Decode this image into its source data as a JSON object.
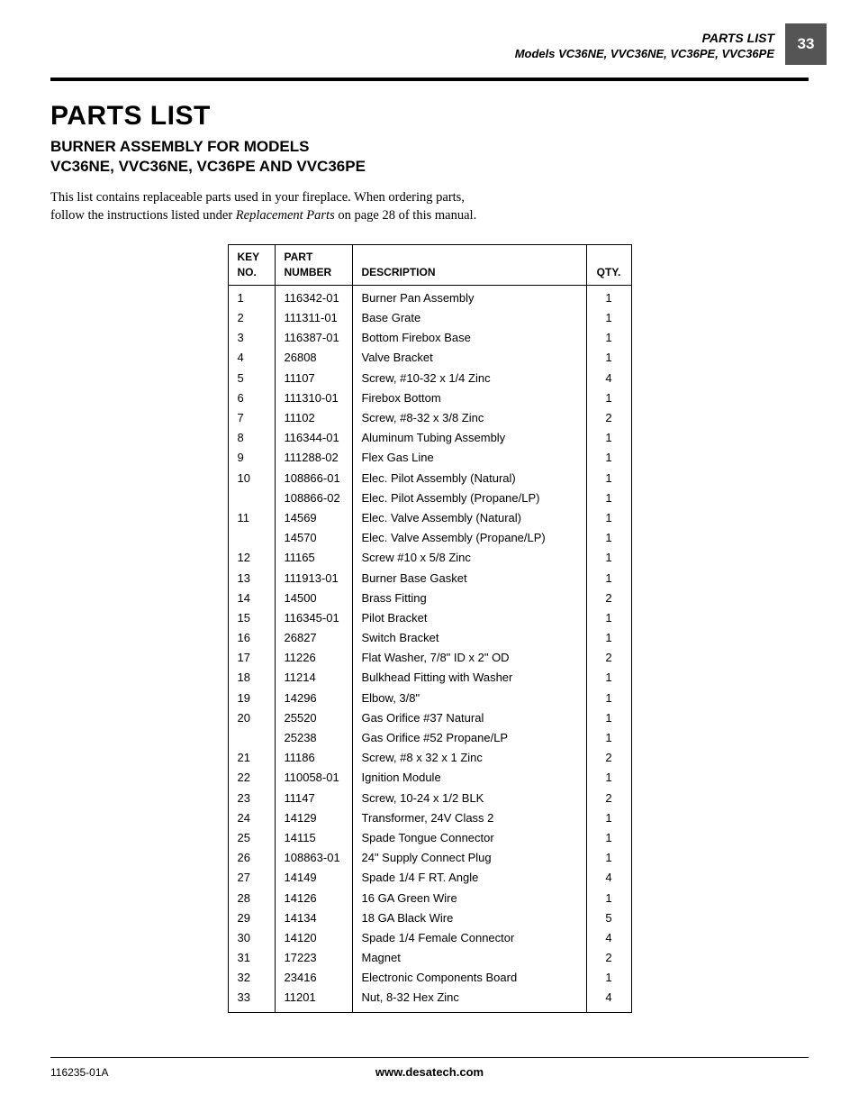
{
  "header": {
    "title": "PARTS LIST",
    "models_line": "Models VC36NE, VVC36NE, VC36PE, VVC36PE",
    "page_number": "33"
  },
  "heading": {
    "main": "PARTS LIST",
    "sub_line1": "BURNER ASSEMBLY FOR MODELS",
    "sub_line2": "VC36NE, VVC36NE, VC36PE AND VVC36PE"
  },
  "intro": {
    "before_ital": "This list contains replaceable parts used in your fireplace. When ordering parts, follow the instructions listed under ",
    "ital": "Replacement Parts",
    "after_ital": " on page 28 of this manual."
  },
  "table": {
    "columns": {
      "key_l1": "KEY",
      "key_l2": "NO.",
      "part_l1": "PART",
      "part_l2": "NUMBER",
      "desc": "DESCRIPTION",
      "qty": "QTY."
    },
    "rows": [
      {
        "key": "1",
        "part": "116342-01",
        "desc": "Burner Pan Assembly",
        "qty": "1"
      },
      {
        "key": "2",
        "part": "111311-01",
        "desc": "Base Grate",
        "qty": "1"
      },
      {
        "key": "3",
        "part": "116387-01",
        "desc": "Bottom Firebox Base",
        "qty": "1"
      },
      {
        "key": "4",
        "part": "26808",
        "desc": "Valve Bracket",
        "qty": "1"
      },
      {
        "key": "5",
        "part": "11107",
        "desc": "Screw, #10-32 x 1/4 Zinc",
        "qty": "4"
      },
      {
        "key": "6",
        "part": "111310-01",
        "desc": "Firebox Bottom",
        "qty": "1"
      },
      {
        "key": "7",
        "part": "11102",
        "desc": "Screw, #8-32 x 3/8 Zinc",
        "qty": "2"
      },
      {
        "key": "8",
        "part": "116344-01",
        "desc": "Aluminum Tubing Assembly",
        "qty": "1"
      },
      {
        "key": "9",
        "part": "111288-02",
        "desc": "Flex Gas Line",
        "qty": "1"
      },
      {
        "key": "10",
        "part": "108866-01",
        "desc": "Elec. Pilot Assembly (Natural)",
        "qty": "1"
      },
      {
        "key": "",
        "part": "108866-02",
        "desc": "Elec. Pilot Assembly (Propane/LP)",
        "qty": "1"
      },
      {
        "key": "11",
        "part": "14569",
        "desc": "Elec. Valve Assembly (Natural)",
        "qty": "1"
      },
      {
        "key": "",
        "part": "14570",
        "desc": "Elec. Valve Assembly (Propane/LP)",
        "qty": "1"
      },
      {
        "key": "12",
        "part": "11165",
        "desc": "Screw #10 x 5/8 Zinc",
        "qty": "1"
      },
      {
        "key": "13",
        "part": "111913-01",
        "desc": "Burner Base Gasket",
        "qty": "1"
      },
      {
        "key": "14",
        "part": "14500",
        "desc": "Brass Fitting",
        "qty": "2"
      },
      {
        "key": "15",
        "part": "116345-01",
        "desc": "Pilot Bracket",
        "qty": "1"
      },
      {
        "key": "16",
        "part": "26827",
        "desc": "Switch Bracket",
        "qty": "1"
      },
      {
        "key": "17",
        "part": "11226",
        "desc": "Flat Washer, 7/8\" ID x 2\" OD",
        "qty": "2"
      },
      {
        "key": "18",
        "part": "11214",
        "desc": "Bulkhead Fitting with Washer",
        "qty": "1"
      },
      {
        "key": "19",
        "part": "14296",
        "desc": "Elbow, 3/8\"",
        "qty": "1"
      },
      {
        "key": "20",
        "part": "25520",
        "desc": "Gas Orifice #37 Natural",
        "qty": "1"
      },
      {
        "key": "",
        "part": "25238",
        "desc": "Gas Orifice #52 Propane/LP",
        "qty": "1"
      },
      {
        "key": "21",
        "part": "11186",
        "desc": "Screw, #8 x 32 x 1 Zinc",
        "qty": "2"
      },
      {
        "key": "22",
        "part": "110058-01",
        "desc": "Ignition Module",
        "qty": "1"
      },
      {
        "key": "23",
        "part": "11147",
        "desc": "Screw, 10-24 x 1/2 BLK",
        "qty": "2"
      },
      {
        "key": "24",
        "part": "14129",
        "desc": "Transformer, 24V Class 2",
        "qty": "1"
      },
      {
        "key": "25",
        "part": "14115",
        "desc": "Spade Tongue Connector",
        "qty": "1"
      },
      {
        "key": "26",
        "part": "108863-01",
        "desc": "24\" Supply Connect Plug",
        "qty": "1"
      },
      {
        "key": "27",
        "part": "14149",
        "desc": "Spade 1/4 F RT. Angle",
        "qty": "4"
      },
      {
        "key": "28",
        "part": "14126",
        "desc": "16 GA Green Wire",
        "qty": "1"
      },
      {
        "key": "29",
        "part": "14134",
        "desc": "18 GA Black Wire",
        "qty": "5"
      },
      {
        "key": "30",
        "part": "14120",
        "desc": "Spade 1/4 Female Connector",
        "qty": "4"
      },
      {
        "key": "31",
        "part": "17223",
        "desc": "Magnet",
        "qty": "2"
      },
      {
        "key": "32",
        "part": "23416",
        "desc": "Electronic Components Board",
        "qty": "1"
      },
      {
        "key": "33",
        "part": "11201",
        "desc": "Nut, 8-32 Hex Zinc",
        "qty": "4"
      }
    ]
  },
  "footer": {
    "doc_number": "116235-01A",
    "website": "www.desatech.com"
  }
}
